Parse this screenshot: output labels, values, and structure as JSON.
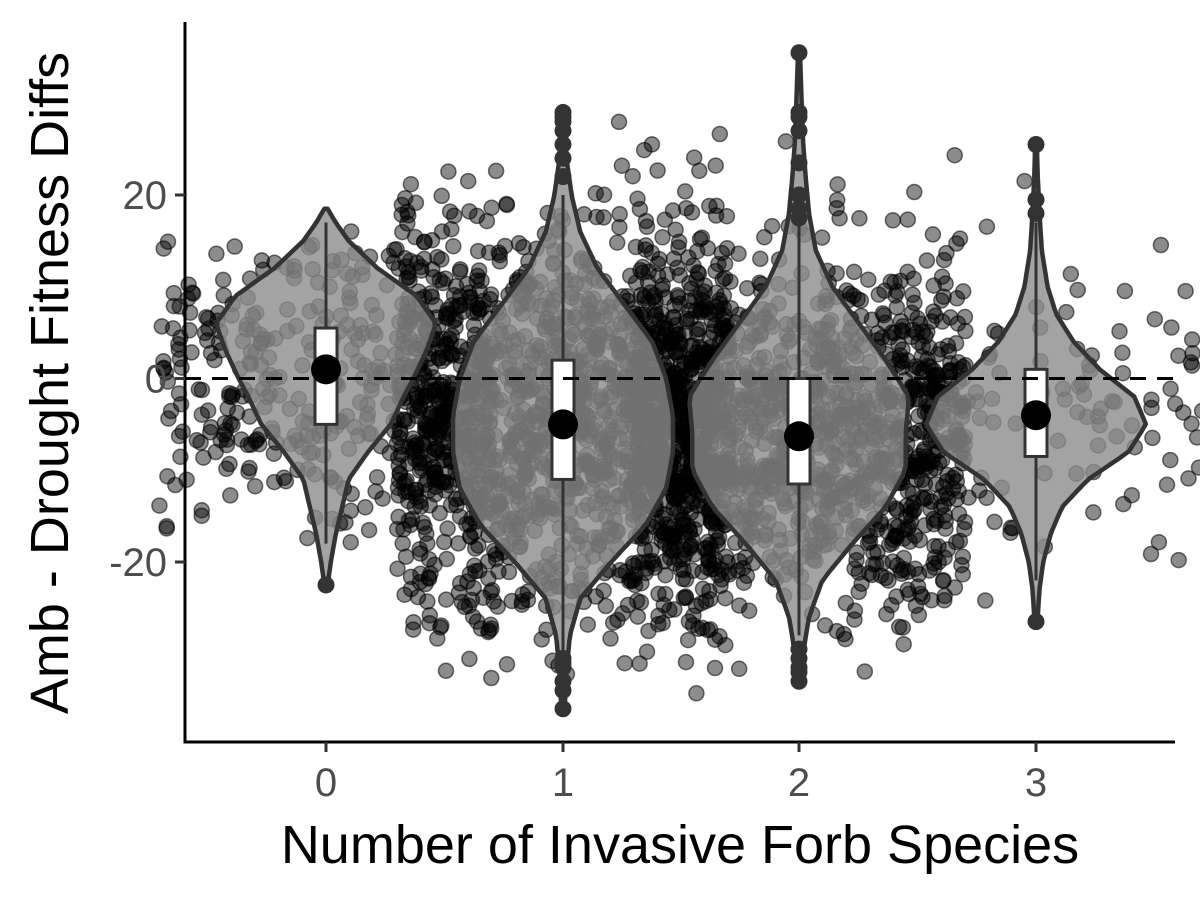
{
  "chart_data": {
    "type": "violin",
    "title": "",
    "xlabel": "Number of Invasive Forb Species",
    "ylabel": "Amb - Drought Fitness Diffs",
    "categories": [
      "0",
      "1",
      "2",
      "3"
    ],
    "ylim": [
      -39,
      39
    ],
    "yticks": [
      -20,
      0,
      20
    ],
    "reference_line": {
      "y": 0,
      "style": "dashed"
    },
    "grid": false,
    "legend": "none",
    "colors": {
      "jitter_points": "#000000",
      "violin_fill": "#8c8c8c",
      "violin_stroke": "#333333",
      "box_fill": "#ffffff",
      "mean_point": "#000000"
    },
    "groups": [
      {
        "category": "0",
        "mean": 1,
        "box": {
          "q1": -5,
          "median": 0,
          "q3": 5.5
        },
        "whisker": [
          -18,
          17
        ],
        "range": [
          -22.5,
          18.5
        ],
        "outliers": [
          -22.5
        ],
        "violin_profile": [
          [
            -22.5,
            0.005
          ],
          [
            -20,
            0.015
          ],
          [
            -17,
            0.03
          ],
          [
            -14,
            0.05
          ],
          [
            -11,
            0.07
          ],
          [
            -8,
            0.13
          ],
          [
            -5,
            0.2
          ],
          [
            -2,
            0.24
          ],
          [
            0,
            0.27
          ],
          [
            3,
            0.31
          ],
          [
            6,
            0.34
          ],
          [
            9,
            0.28
          ],
          [
            12,
            0.16
          ],
          [
            15,
            0.07
          ],
          [
            17,
            0.03
          ],
          [
            18.5,
            0.005
          ]
        ],
        "n_points": 380,
        "point_spread": [
          -18,
          18
        ]
      },
      {
        "category": "1",
        "mean": -5,
        "box": {
          "q1": -11,
          "median": -4,
          "q3": 2
        },
        "whisker": [
          -30,
          20
        ],
        "range": [
          -36,
          29
        ],
        "outliers": [
          -36,
          -34,
          -33,
          -31.5,
          -31,
          -30.5,
          22,
          24,
          25.5,
          27,
          28,
          28.5,
          29
        ],
        "violin_profile": [
          [
            -36,
            0.005
          ],
          [
            -32,
            0.01
          ],
          [
            -28,
            0.02
          ],
          [
            -24,
            0.05
          ],
          [
            -20,
            0.14
          ],
          [
            -16,
            0.24
          ],
          [
            -12,
            0.3
          ],
          [
            -8,
            0.32
          ],
          [
            -4,
            0.32
          ],
          [
            0,
            0.3
          ],
          [
            4,
            0.26
          ],
          [
            8,
            0.18
          ],
          [
            12,
            0.1
          ],
          [
            16,
            0.05
          ],
          [
            20,
            0.025
          ],
          [
            24,
            0.01
          ],
          [
            29,
            0.005
          ]
        ],
        "n_points": 1500,
        "point_spread": [
          -36,
          28
        ]
      },
      {
        "category": "2",
        "mean": -6.3,
        "box": {
          "q1": -11.5,
          "median": -6,
          "q3": 0
        },
        "whisker": [
          -28,
          17
        ],
        "range": [
          -33,
          35.5
        ],
        "outliers": [
          -33,
          -32,
          -31.5,
          -30.5,
          -29.5,
          17.5,
          18.5,
          20,
          23.5,
          27,
          28.5,
          29,
          35.5
        ],
        "violin_profile": [
          [
            -33,
            0.005
          ],
          [
            -30,
            0.012
          ],
          [
            -26,
            0.03
          ],
          [
            -22,
            0.07
          ],
          [
            -18,
            0.16
          ],
          [
            -14,
            0.26
          ],
          [
            -10,
            0.32
          ],
          [
            -6,
            0.32
          ],
          [
            -2,
            0.33
          ],
          [
            2,
            0.26
          ],
          [
            6,
            0.18
          ],
          [
            10,
            0.1
          ],
          [
            14,
            0.05
          ],
          [
            18,
            0.03
          ],
          [
            22,
            0.02
          ],
          [
            26,
            0.012
          ],
          [
            30,
            0.008
          ],
          [
            35.5,
            0.003
          ]
        ],
        "n_points": 1300,
        "point_spread": [
          -33,
          35
        ]
      },
      {
        "category": "3",
        "mean": -4,
        "box": {
          "q1": -8.5,
          "median": -4,
          "q3": 1
        },
        "whisker": [
          -22,
          17
        ],
        "range": [
          -26.5,
          25.5
        ],
        "outliers": [
          -26.5,
          18,
          19.5,
          25.5
        ],
        "violin_profile": [
          [
            -26.5,
            0.005
          ],
          [
            -23,
            0.012
          ],
          [
            -20,
            0.025
          ],
          [
            -17,
            0.05
          ],
          [
            -14,
            0.09
          ],
          [
            -11,
            0.18
          ],
          [
            -8,
            0.32
          ],
          [
            -5,
            0.38
          ],
          [
            -2,
            0.34
          ],
          [
            1,
            0.22
          ],
          [
            4,
            0.13
          ],
          [
            7,
            0.07
          ],
          [
            10,
            0.04
          ],
          [
            14,
            0.02
          ],
          [
            18,
            0.012
          ],
          [
            22,
            0.006
          ],
          [
            25.5,
            0.003
          ]
        ],
        "n_points": 130,
        "point_spread": [
          -26.5,
          26
        ]
      }
    ]
  }
}
